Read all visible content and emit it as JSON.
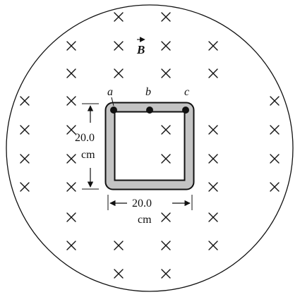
{
  "field_label": "B",
  "field_direction": "into-page",
  "points": {
    "a": "a",
    "b": "b",
    "c": "c"
  },
  "height_dimension": {
    "value": "20.0",
    "unit": "cm"
  },
  "width_dimension": {
    "value": "20.0",
    "unit": "cm"
  },
  "colors": {
    "ink": "#111111",
    "loop": "#c4c4c4"
  }
}
